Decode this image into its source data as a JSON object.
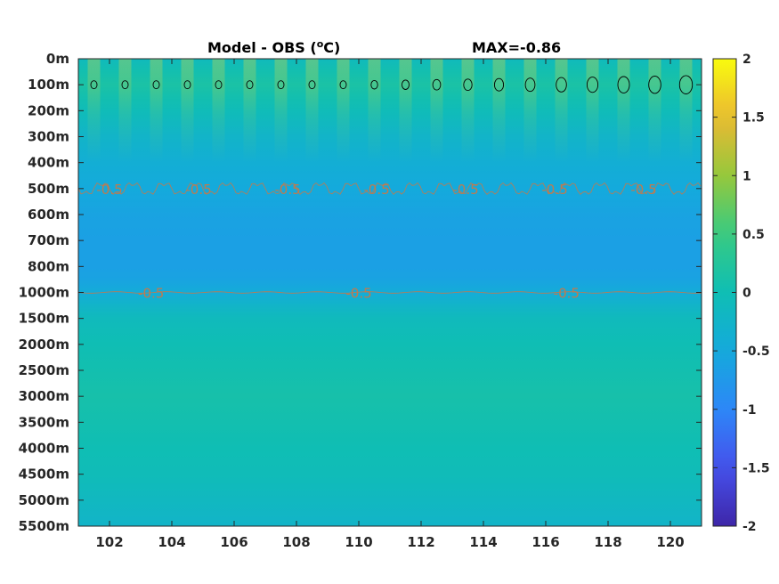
{
  "chart_data": {
    "type": "heatmap",
    "title": {
      "left": "Model - OBS (",
      "unit_sup": "o",
      "unit": "C)",
      "right": "MAX=-0.86"
    },
    "xlabel": "",
    "ylabel": "",
    "xlim": [
      101,
      121
    ],
    "x_ticks": [
      "102",
      "104",
      "106",
      "108",
      "110",
      "112",
      "114",
      "116",
      "118",
      "120"
    ],
    "x_tick_values": [
      102,
      104,
      106,
      108,
      110,
      112,
      114,
      116,
      118,
      120
    ],
    "y_ticks": [
      "0m",
      "100m",
      "200m",
      "300m",
      "400m",
      "500m",
      "600m",
      "700m",
      "800m",
      "1000m",
      "1500m",
      "2000m",
      "2500m",
      "3000m",
      "3500m",
      "4000m",
      "4500m",
      "5000m",
      "5500m"
    ],
    "y_tick_values": [
      0,
      100,
      200,
      300,
      400,
      500,
      600,
      700,
      800,
      1000,
      1500,
      2000,
      2500,
      3000,
      3500,
      4000,
      4500,
      5000,
      5500
    ],
    "y_axis_reversed": true,
    "colorbar": {
      "colormap": "parula",
      "clim": [
        -2,
        2
      ],
      "tick_values": [
        2,
        1.5,
        1,
        0.5,
        0,
        -0.5,
        -1,
        -1.5,
        -2
      ],
      "tick_labels": [
        "2",
        "1.5",
        "1",
        "0.5",
        "0",
        "-0.5",
        "-1",
        "-1.5",
        "-2"
      ]
    },
    "depth_profile": {
      "depths": [
        0,
        50,
        100,
        150,
        200,
        300,
        400,
        500,
        600,
        700,
        800,
        900,
        1000,
        1250,
        1500,
        2000,
        2500,
        3000,
        3500,
        4000,
        4500,
        5000,
        5500
      ],
      "values": [
        -0.1,
        0.05,
        0.15,
        0.05,
        -0.05,
        -0.25,
        -0.4,
        -0.5,
        -0.6,
        -0.65,
        -0.65,
        -0.6,
        -0.45,
        -0.25,
        -0.1,
        0.0,
        0.05,
        0.1,
        0.05,
        0.0,
        -0.05,
        -0.15,
        -0.25
      ]
    },
    "contours": [
      {
        "level": -0.5,
        "depth": 500,
        "labels": [
          "-0.5",
          "-0.5",
          "-0.5",
          "-0.5",
          "-0.5",
          "-0.5",
          "-0.5"
        ]
      },
      {
        "level": -0.5,
        "depth": 1000,
        "labels": [
          "-0.5",
          "-0.5",
          "-0.5"
        ]
      },
      {
        "level": 0.5,
        "depth": 100,
        "label_visible": false
      }
    ],
    "grid": false,
    "legend": "colorbar right"
  },
  "colors": {
    "contour_minus": "#c07a4e",
    "contour_plus": "#000000",
    "axis": "#262626"
  }
}
